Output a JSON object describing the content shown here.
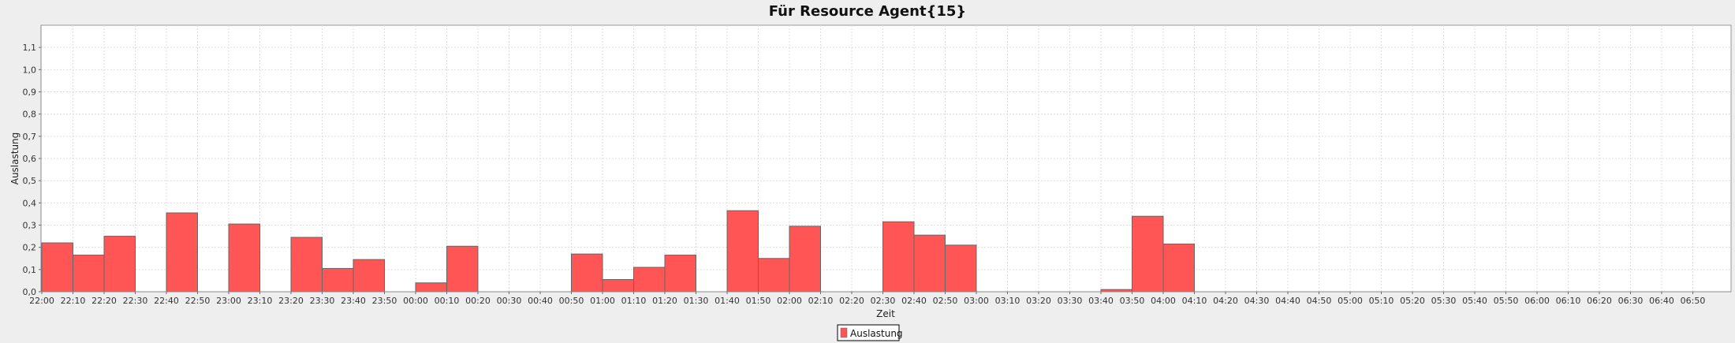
{
  "chart_data": {
    "type": "bar",
    "title": "Für Resource Agent{15}",
    "xlabel": "Zeit",
    "ylabel": "Auslastung",
    "ylim": [
      0,
      1.2
    ],
    "yticks": [
      "0,0",
      "0,1",
      "0,2",
      "0,3",
      "0,4",
      "0,5",
      "0,6",
      "0,7",
      "0,8",
      "0,9",
      "1,0",
      "1,1"
    ],
    "grid": true,
    "legend_position": "bottom",
    "categories": [
      "22:00",
      "22:10",
      "22:20",
      "22:30",
      "22:40",
      "22:50",
      "23:00",
      "23:10",
      "23:20",
      "23:30",
      "23:40",
      "23:50",
      "00:00",
      "00:10",
      "00:20",
      "00:30",
      "00:40",
      "00:50",
      "01:00",
      "01:10",
      "01:20",
      "01:30",
      "01:40",
      "01:50",
      "02:00",
      "02:10",
      "02:20",
      "02:30",
      "02:40",
      "02:50",
      "03:00",
      "03:10",
      "03:20",
      "03:30",
      "03:40",
      "03:50",
      "04:00",
      "04:10",
      "04:20",
      "04:30",
      "04:40",
      "04:50",
      "05:00",
      "05:10",
      "05:20",
      "05:30",
      "05:40",
      "05:50",
      "06:00",
      "06:10",
      "06:20",
      "06:30",
      "06:40",
      "06:50"
    ],
    "series": [
      {
        "name": "Auslastung",
        "color": "#ff5555",
        "values": [
          0.22,
          0.165,
          0.25,
          0,
          0.355,
          0,
          0.305,
          0,
          0.245,
          0.105,
          0.145,
          0,
          0.04,
          0.205,
          0,
          0,
          0,
          0.17,
          0.055,
          0.11,
          0.165,
          0,
          0.365,
          0.15,
          0.295,
          0,
          0,
          0.315,
          0.255,
          0.21,
          0,
          0,
          0,
          0,
          0.01,
          0.34,
          0.215,
          0,
          0,
          0,
          0,
          0,
          0,
          0,
          0,
          0,
          0,
          0,
          0,
          0,
          0,
          0,
          0,
          0
        ]
      }
    ]
  }
}
